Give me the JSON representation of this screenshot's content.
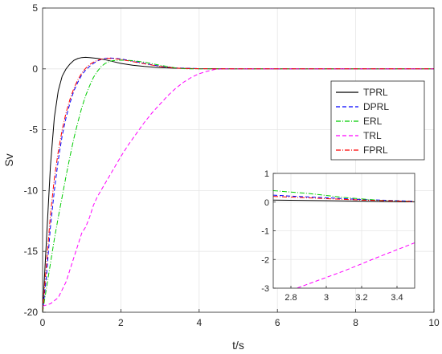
{
  "chart_data": [
    {
      "type": "line",
      "xlabel": "t/s",
      "ylabel": "Sv",
      "xlim": [
        0,
        10
      ],
      "ylim": [
        -20,
        5
      ],
      "x_ticks": [
        0,
        2,
        4,
        6,
        8,
        10
      ],
      "y_ticks": [
        -20,
        -15,
        -10,
        -5,
        0,
        5
      ],
      "grid": true,
      "legend": "right",
      "series": [
        {
          "name": "TPRL",
          "color": "#000000",
          "dash": "solid",
          "points": [
            [
              0,
              -20
            ],
            [
              0.1,
              -14
            ],
            [
              0.2,
              -8
            ],
            [
              0.3,
              -4
            ],
            [
              0.4,
              -1.8
            ],
            [
              0.5,
              -0.6
            ],
            [
              0.6,
              0
            ],
            [
              0.7,
              0.4
            ],
            [
              0.8,
              0.7
            ],
            [
              0.9,
              0.85
            ],
            [
              1.0,
              0.93
            ],
            [
              1.1,
              0.95
            ],
            [
              1.2,
              0.93
            ],
            [
              1.4,
              0.86
            ],
            [
              1.6,
              0.75
            ],
            [
              1.8,
              0.6
            ],
            [
              2.0,
              0.45
            ],
            [
              2.3,
              0.3
            ],
            [
              2.6,
              0.2
            ],
            [
              3.0,
              0.1
            ],
            [
              3.4,
              0.05
            ],
            [
              4,
              0.01
            ],
            [
              5,
              0
            ],
            [
              10,
              0
            ]
          ]
        },
        {
          "name": "DPRL",
          "color": "#0000ff",
          "dash": "dash",
          "points": [
            [
              0,
              -20
            ],
            [
              0.1,
              -17
            ],
            [
              0.2,
              -13
            ],
            [
              0.3,
              -10
            ],
            [
              0.4,
              -7.5
            ],
            [
              0.5,
              -5.5
            ],
            [
              0.6,
              -4
            ],
            [
              0.7,
              -2.8
            ],
            [
              0.8,
              -1.8
            ],
            [
              0.9,
              -1.1
            ],
            [
              1.0,
              -0.5
            ],
            [
              1.1,
              -0.1
            ],
            [
              1.2,
              0.2
            ],
            [
              1.3,
              0.45
            ],
            [
              1.4,
              0.65
            ],
            [
              1.5,
              0.78
            ],
            [
              1.6,
              0.86
            ],
            [
              1.7,
              0.9
            ],
            [
              1.8,
              0.88
            ],
            [
              2.0,
              0.82
            ],
            [
              2.3,
              0.65
            ],
            [
              2.6,
              0.45
            ],
            [
              3.0,
              0.22
            ],
            [
              3.4,
              0.08
            ],
            [
              4,
              0.02
            ],
            [
              5,
              0
            ],
            [
              10,
              0
            ]
          ]
        },
        {
          "name": "ERL",
          "color": "#00cc00",
          "dash": "dashdot",
          "points": [
            [
              0,
              -20
            ],
            [
              0.1,
              -18
            ],
            [
              0.2,
              -16
            ],
            [
              0.3,
              -14
            ],
            [
              0.4,
              -12.2
            ],
            [
              0.5,
              -10.5
            ],
            [
              0.6,
              -8.8
            ],
            [
              0.7,
              -7.2
            ],
            [
              0.8,
              -5.7
            ],
            [
              0.9,
              -4.4
            ],
            [
              1.0,
              -3.2
            ],
            [
              1.1,
              -2.2
            ],
            [
              1.2,
              -1.4
            ],
            [
              1.3,
              -0.7
            ],
            [
              1.4,
              -0.2
            ],
            [
              1.5,
              0.2
            ],
            [
              1.6,
              0.45
            ],
            [
              1.7,
              0.6
            ],
            [
              1.8,
              0.68
            ],
            [
              2.0,
              0.72
            ],
            [
              2.3,
              0.68
            ],
            [
              2.6,
              0.55
            ],
            [
              3.0,
              0.3
            ],
            [
              3.4,
              0.08
            ],
            [
              3.7,
              0
            ],
            [
              4,
              0
            ],
            [
              10,
              0
            ]
          ]
        },
        {
          "name": "TRL",
          "color": "#ff00ff",
          "dash": "dash",
          "points": [
            [
              0,
              -19.5
            ],
            [
              0.2,
              -19.3
            ],
            [
              0.4,
              -18.8
            ],
            [
              0.6,
              -17.5
            ],
            [
              0.7,
              -16.5
            ],
            [
              0.8,
              -15.5
            ],
            [
              0.9,
              -14.5
            ],
            [
              1.0,
              -13.5
            ],
            [
              1.1,
              -13
            ],
            [
              1.2,
              -12.2
            ],
            [
              1.3,
              -11.2
            ],
            [
              1.4,
              -10.5
            ],
            [
              1.6,
              -9.4
            ],
            [
              1.8,
              -8.3
            ],
            [
              2.0,
              -7.2
            ],
            [
              2.2,
              -6.2
            ],
            [
              2.4,
              -5.3
            ],
            [
              2.6,
              -4.4
            ],
            [
              2.8,
              -3.6
            ],
            [
              3.0,
              -2.9
            ],
            [
              3.2,
              -2.2
            ],
            [
              3.4,
              -1.6
            ],
            [
              3.6,
              -1.1
            ],
            [
              3.8,
              -0.7
            ],
            [
              4.0,
              -0.4
            ],
            [
              4.2,
              -0.2
            ],
            [
              4.4,
              -0.05
            ],
            [
              4.6,
              0
            ],
            [
              10,
              0
            ]
          ]
        },
        {
          "name": "FPRL",
          "color": "#ff0000",
          "dash": "dashdot",
          "points": [
            [
              0,
              -20
            ],
            [
              0.1,
              -16
            ],
            [
              0.2,
              -12
            ],
            [
              0.3,
              -9
            ],
            [
              0.4,
              -6.8
            ],
            [
              0.5,
              -5
            ],
            [
              0.6,
              -3.6
            ],
            [
              0.7,
              -2.5
            ],
            [
              0.8,
              -1.6
            ],
            [
              0.9,
              -0.9
            ],
            [
              1.0,
              -0.35
            ],
            [
              1.1,
              0.05
            ],
            [
              1.2,
              0.35
            ],
            [
              1.3,
              0.55
            ],
            [
              1.4,
              0.7
            ],
            [
              1.5,
              0.8
            ],
            [
              1.6,
              0.85
            ],
            [
              1.7,
              0.86
            ],
            [
              1.8,
              0.85
            ],
            [
              2.0,
              0.78
            ],
            [
              2.3,
              0.6
            ],
            [
              2.6,
              0.42
            ],
            [
              3.0,
              0.2
            ],
            [
              3.4,
              0.06
            ],
            [
              4,
              0.01
            ],
            [
              5,
              0
            ],
            [
              10,
              0
            ]
          ]
        }
      ]
    },
    {
      "type": "line",
      "inset": true,
      "xlim": [
        2.7,
        3.5
      ],
      "ylim": [
        -3,
        1
      ],
      "x_ticks": [
        2.8,
        3,
        3.2,
        3.4
      ],
      "x_tick_labels": [
        "2.8",
        "3",
        "3.2",
        "3.4"
      ],
      "y_ticks": [
        -3,
        -2,
        -1,
        0,
        1
      ],
      "grid": true,
      "series": [
        {
          "name": "TPRL",
          "color": "#000000",
          "dash": "solid",
          "points": [
            [
              2.7,
              0.07
            ],
            [
              3.0,
              0.05
            ],
            [
              3.2,
              0.03
            ],
            [
              3.5,
              0.01
            ]
          ]
        },
        {
          "name": "DPRL",
          "color": "#0000ff",
          "dash": "dash",
          "points": [
            [
              2.7,
              0.24
            ],
            [
              3.0,
              0.15
            ],
            [
              3.2,
              0.09
            ],
            [
              3.5,
              0.03
            ]
          ]
        },
        {
          "name": "ERL",
          "color": "#00cc00",
          "dash": "dashdot",
          "points": [
            [
              2.7,
              0.4
            ],
            [
              2.9,
              0.3
            ],
            [
              3.1,
              0.16
            ],
            [
              3.3,
              0.06
            ],
            [
              3.5,
              0.02
            ]
          ]
        },
        {
          "name": "TRL",
          "color": "#ff00ff",
          "dash": "dash",
          "points": [
            [
              2.7,
              -3.3
            ],
            [
              2.9,
              -2.85
            ],
            [
              3.1,
              -2.4
            ],
            [
              3.3,
              -1.9
            ],
            [
              3.5,
              -1.42
            ]
          ]
        },
        {
          "name": "FPRL",
          "color": "#ff0000",
          "dash": "dashdot",
          "points": [
            [
              2.7,
              0.2
            ],
            [
              3.0,
              0.12
            ],
            [
              3.2,
              0.07
            ],
            [
              3.5,
              0.02
            ]
          ]
        }
      ]
    }
  ]
}
